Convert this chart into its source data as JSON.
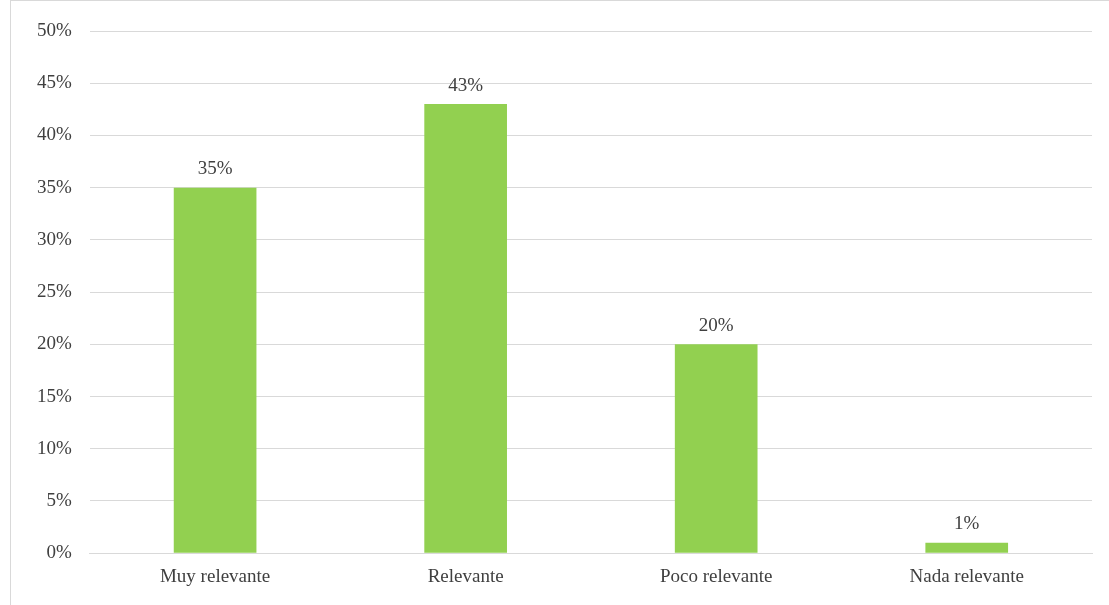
{
  "chart_data": {
    "type": "bar",
    "categories": [
      "Muy relevante",
      "Relevante",
      "Poco relevante",
      "Nada relevante"
    ],
    "values": [
      35,
      43,
      20,
      1
    ],
    "value_labels": [
      "35%",
      "43%",
      "20%",
      "1%"
    ],
    "color": "#92d050",
    "ylim": [
      0,
      50
    ],
    "yticks": [
      {
        "value": 0,
        "label": "0%"
      },
      {
        "value": 5,
        "label": "5%"
      },
      {
        "value": 10,
        "label": "10%"
      },
      {
        "value": 15,
        "label": "15%"
      },
      {
        "value": 20,
        "label": "20%"
      },
      {
        "value": 25,
        "label": "25%"
      },
      {
        "value": 30,
        "label": "30%"
      },
      {
        "value": 35,
        "label": "35%"
      },
      {
        "value": 40,
        "label": "40%"
      },
      {
        "value": 45,
        "label": "45%"
      },
      {
        "value": 50,
        "label": "50%"
      }
    ],
    "grid": "y"
  }
}
